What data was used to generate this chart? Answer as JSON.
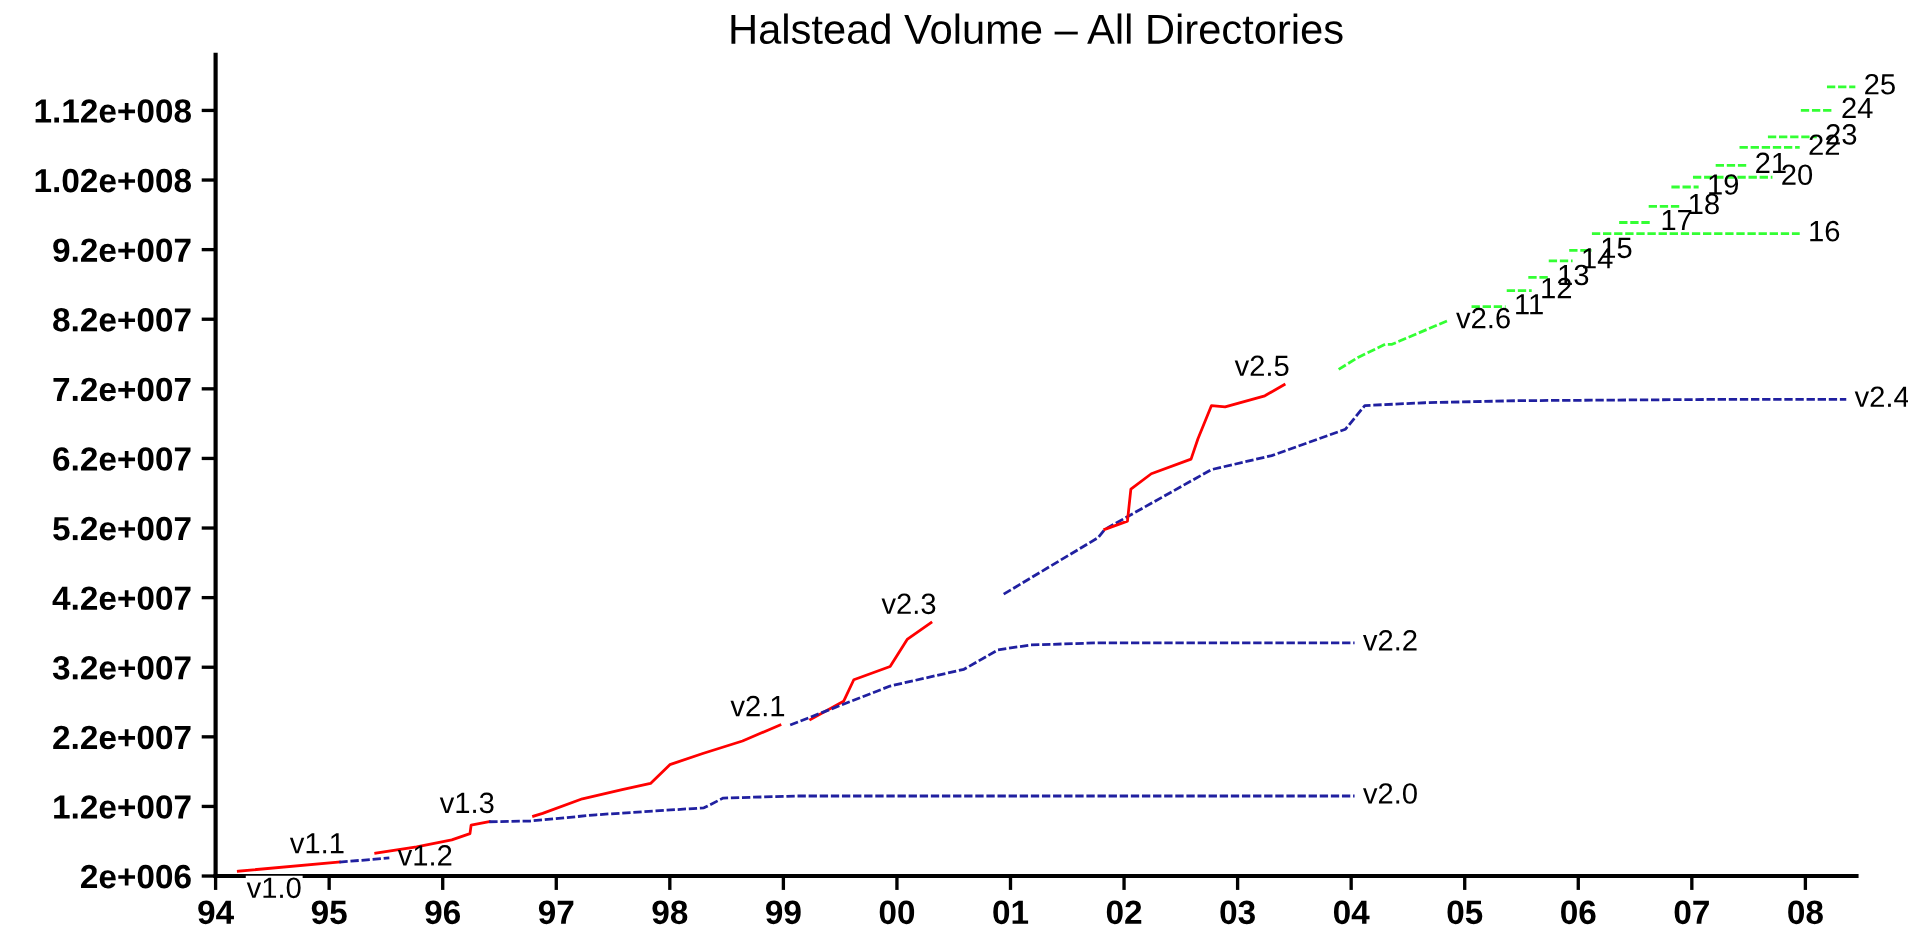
{
  "chart_data": {
    "type": "line",
    "title": "Halstead Volume – All Directories",
    "xlim": [
      1994,
      2008.45
    ],
    "xticks": [
      {
        "value": 1994,
        "label": "94"
      },
      {
        "value": 1995,
        "label": "95"
      },
      {
        "value": 1996,
        "label": "96"
      },
      {
        "value": 1997,
        "label": "97"
      },
      {
        "value": 1998,
        "label": "98"
      },
      {
        "value": 1999,
        "label": "99"
      },
      {
        "value": 2000,
        "label": "00"
      },
      {
        "value": 2001,
        "label": "01"
      },
      {
        "value": 2002,
        "label": "02"
      },
      {
        "value": 2003,
        "label": "03"
      },
      {
        "value": 2004,
        "label": "04"
      },
      {
        "value": 2005,
        "label": "05"
      },
      {
        "value": 2006,
        "label": "06"
      },
      {
        "value": 2007,
        "label": "07"
      },
      {
        "value": 2008,
        "label": "08"
      }
    ],
    "ylim": [
      2000000.0,
      120000000.0
    ],
    "yticks": [
      {
        "value": 2000000.0,
        "label": "2e+006"
      },
      {
        "value": 12000000.0,
        "label": "1.2e+007"
      },
      {
        "value": 22000000.0,
        "label": "2.2e+007"
      },
      {
        "value": 32000000.0,
        "label": "3.2e+007"
      },
      {
        "value": 42000000.0,
        "label": "4.2e+007"
      },
      {
        "value": 52000000.0,
        "label": "5.2e+007"
      },
      {
        "value": 62000000.0,
        "label": "6.2e+007"
      },
      {
        "value": 72000000.0,
        "label": "7.2e+007"
      },
      {
        "value": 82000000.0,
        "label": "8.2e+007"
      },
      {
        "value": 92000000.0,
        "label": "9.2e+007"
      },
      {
        "value": 102000000.0,
        "label": "1.02e+008"
      },
      {
        "value": 112000000.0,
        "label": "1.12e+008"
      }
    ],
    "grid": false,
    "series": [
      {
        "color": "#ff0000",
        "line_style": "solid",
        "x": [
          1994.2,
          1995.09
        ],
        "values": [
          2700000.0,
          4000000.0
        ]
      },
      {
        "color": "#2020a0",
        "line_style": "dashed",
        "x": [
          1995.09,
          1995.53
        ],
        "values": [
          4000000.0,
          4600000.0
        ]
      },
      {
        "color": "#ff0000",
        "line_style": "solid",
        "x": [
          1995.41,
          1995.77,
          1996.08,
          1996.24,
          1996.25,
          1996.41
        ],
        "values": [
          5300000.0,
          6200000.0,
          7200000.0,
          8100000.0,
          9300000.0,
          9800000.0
        ]
      },
      {
        "color": "#2020a0",
        "line_style": "dashed",
        "x": [
          1996.41,
          1996.77,
          1997.35,
          1998.3,
          1998.47,
          1999.12,
          2004.03
        ],
        "values": [
          9800000.0,
          9900000.0,
          10800000.0,
          11800000.0,
          13200000.0,
          13500000.0,
          13500000.0
        ]
      },
      {
        "color": "#ff0000",
        "line_style": "solid",
        "x": [
          1996.8,
          1996.88,
          1997.23,
          1997.58,
          1997.83,
          1998.0,
          1998.29,
          1998.64,
          1998.97
        ],
        "values": [
          10600000.0,
          11000000.0,
          13100000.0,
          14400000.0,
          15300000.0,
          18000000.0,
          19600000.0,
          21400000.0,
          23700000.0
        ]
      },
      {
        "color": "#ff0000",
        "line_style": "solid",
        "x": [
          1999.24,
          1999.53,
          1999.62,
          1999.94,
          2000.09,
          2000.3
        ],
        "values": [
          24500000.0,
          27100000.0,
          30200000.0,
          32100000.0,
          36000000.0,
          38400000.0
        ]
      },
      {
        "color": "#2020a0",
        "line_style": "dashed",
        "x": [
          1999.06,
          1999.94,
          2000.59,
          2000.89,
          2001.18,
          2001.77,
          2004.03
        ],
        "values": [
          23700000.0,
          29300000.0,
          31700000.0,
          34500000.0,
          35200000.0,
          35500000.0,
          35500000.0
        ]
      },
      {
        "color": "#2020a0",
        "line_style": "dashed",
        "x": [
          2000.94,
          2001.77,
          2001.83,
          2002.77,
          2003.3,
          2003.95,
          2004.12,
          2004.65,
          2005.48,
          2007.42,
          2008.36
        ],
        "values": [
          42500000.0,
          50600000.0,
          51800000.0,
          60400000.0,
          62400000.0,
          66200000.0,
          69600000.0,
          70000000.0,
          70300000.0,
          70500000.0,
          70500000.0
        ]
      },
      {
        "color": "#ff0000",
        "line_style": "solid",
        "x": [
          2001.83,
          2002.03,
          2002.06,
          2002.24,
          2002.59,
          2002.65,
          2002.77,
          2002.89,
          2003.24,
          2003.41
        ],
        "values": [
          51800000.0,
          53000000.0,
          57600000.0,
          59800000.0,
          61900000.0,
          64800000.0,
          69600000.0,
          69400000.0,
          71000000.0,
          72600000.0
        ]
      },
      {
        "color": "#33ff33",
        "line_style": "dashed",
        "x": [
          2003.89,
          2004.06,
          2004.3,
          2004.36,
          2004.85
        ],
        "values": [
          74800000.0,
          76500000.0,
          78400000.0,
          78400000.0,
          81800000.0
        ]
      },
      {
        "color": "#33ff33",
        "line_style": "dashed",
        "x": [
          2005.06,
          2005.36
        ],
        "values": [
          83800000.0,
          83800000.0
        ]
      },
      {
        "color": "#33ff33",
        "line_style": "dashed",
        "x": [
          2005.37,
          2005.59
        ],
        "values": [
          86100000.0,
          86100000.0
        ]
      },
      {
        "color": "#33ff33",
        "line_style": "dashed",
        "x": [
          2005.56,
          2005.74
        ],
        "values": [
          88000000.0,
          88000000.0
        ]
      },
      {
        "color": "#33ff33",
        "line_style": "dashed",
        "x": [
          2005.74,
          2005.95
        ],
        "values": [
          90400000.0,
          90400000.0
        ]
      },
      {
        "color": "#33ff33",
        "line_style": "dashed",
        "x": [
          2005.92,
          2006.12
        ],
        "values": [
          91900000.0,
          91900000.0
        ]
      },
      {
        "color": "#33ff33",
        "line_style": "dashed",
        "x": [
          2006.12,
          2007.95
        ],
        "values": [
          94300000.0,
          94300000.0
        ]
      },
      {
        "color": "#33ff33",
        "line_style": "dashed",
        "x": [
          2006.36,
          2006.65
        ],
        "values": [
          95900000.0,
          95900000.0
        ]
      },
      {
        "color": "#33ff33",
        "line_style": "dashed",
        "x": [
          2006.62,
          2006.89
        ],
        "values": [
          98200000.0,
          98200000.0
        ]
      },
      {
        "color": "#33ff33",
        "line_style": "dashed",
        "x": [
          2006.82,
          2007.06
        ],
        "values": [
          101000000.0,
          101000000.0
        ]
      },
      {
        "color": "#33ff33",
        "line_style": "dashed",
        "x": [
          2007.01,
          2007.71
        ],
        "values": [
          102400000.0,
          102400000.0
        ]
      },
      {
        "color": "#33ff33",
        "line_style": "dashed",
        "x": [
          2007.21,
          2007.48
        ],
        "values": [
          104100000.0,
          104100000.0
        ]
      },
      {
        "color": "#33ff33",
        "line_style": "dashed",
        "x": [
          2007.42,
          2007.95
        ],
        "values": [
          106700000.0,
          106700000.0
        ]
      },
      {
        "color": "#33ff33",
        "line_style": "dashed",
        "x": [
          2007.67,
          2008.1
        ],
        "values": [
          108200000.0,
          108200000.0
        ]
      },
      {
        "color": "#33ff33",
        "line_style": "dashed",
        "x": [
          2007.96,
          2008.24
        ],
        "values": [
          112000000.0,
          112000000.0
        ]
      },
      {
        "color": "#33ff33",
        "line_style": "dashed",
        "x": [
          2008.19,
          2008.44
        ],
        "values": [
          115400000.0,
          115400000.0
        ]
      }
    ],
    "annotations": [
      {
        "text": "v1.0",
        "x": 1994.2,
        "y": 2700000.0
      },
      {
        "text": "v1.1",
        "x": 1995.09,
        "y": 4000000.0
      },
      {
        "text": "v1.2",
        "x": 1995.53,
        "y": 4600000.0
      },
      {
        "text": "v1.3",
        "x": 1996.41,
        "y": 9800000.0
      },
      {
        "text": "v2.1",
        "x": 1998.97,
        "y": 23700000.0
      },
      {
        "text": "v2.3",
        "x": 2000.3,
        "y": 38400000.0
      },
      {
        "text": "v2.5",
        "x": 2003.41,
        "y": 72600000.0
      },
      {
        "text": "v2.6",
        "x": 2004.85,
        "y": 81800000.0
      },
      {
        "text": "v2.0",
        "x": 2004.03,
        "y": 13500000.0
      },
      {
        "text": "v2.2",
        "x": 2004.03,
        "y": 35500000.0
      },
      {
        "text": "v2.4",
        "x": 2008.36,
        "y": 70500000.0
      },
      {
        "text": "11",
        "x": 2005.36,
        "y": 83800000.0
      },
      {
        "text": "12",
        "x": 2005.59,
        "y": 86100000.0
      },
      {
        "text": "13",
        "x": 2005.74,
        "y": 88000000.0
      },
      {
        "text": "14",
        "x": 2005.95,
        "y": 90400000.0
      },
      {
        "text": "15",
        "x": 2006.12,
        "y": 91900000.0
      },
      {
        "text": "16",
        "x": 2007.95,
        "y": 94300000.0
      },
      {
        "text": "17",
        "x": 2006.65,
        "y": 95900000.0
      },
      {
        "text": "18",
        "x": 2006.89,
        "y": 98200000.0
      },
      {
        "text": "19",
        "x": 2007.06,
        "y": 101000000.0
      },
      {
        "text": "20",
        "x": 2007.71,
        "y": 102400000.0
      },
      {
        "text": "21",
        "x": 2007.48,
        "y": 104100000.0
      },
      {
        "text": "22",
        "x": 2007.95,
        "y": 106700000.0
      },
      {
        "text": "23",
        "x": 2008.1,
        "y": 108200000.0
      },
      {
        "text": "24",
        "x": 2008.24,
        "y": 112000000.0
      },
      {
        "text": "25",
        "x": 2008.44,
        "y": 115400000.0
      }
    ]
  }
}
